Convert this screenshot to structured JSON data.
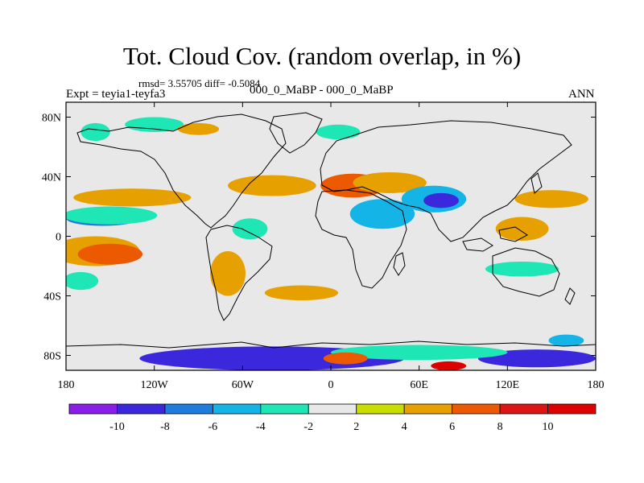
{
  "title": "Tot. Cloud Cov. (random overlap, in %)",
  "stats": "rmsd= 3.55705 diff= -0.5084",
  "left_label": "Expt = teyia1-teyfa3",
  "center_label": "000_0_MaBP - 000_0_MaBP",
  "right_label": "ANN",
  "chart_data": {
    "type": "heatmap",
    "x_ticks": [
      "180",
      "120W",
      "60W",
      "0",
      "60E",
      "120E",
      "180"
    ],
    "y_ticks": [
      "80N",
      "40N",
      "0",
      "40S",
      "80S"
    ],
    "x_values": [
      -180,
      -120,
      -60,
      0,
      60,
      120,
      180
    ],
    "y_values": [
      80,
      40,
      0,
      -40,
      -80
    ],
    "xlim": [
      -180,
      180
    ],
    "ylim": [
      -90,
      90
    ],
    "colorbar": {
      "labels": [
        "-10",
        "-8",
        "-6",
        "-4",
        "-2",
        "2",
        "4",
        "6",
        "8",
        "10"
      ],
      "levels": [
        -10,
        -8,
        -6,
        -4,
        -2,
        2,
        4,
        6,
        8,
        10
      ],
      "colors": [
        "#8a1ee6",
        "#3c28dc",
        "#1e7ddc",
        "#14b4e6",
        "#1ee6b4",
        "#e8e8e8",
        "#c8dc00",
        "#e6a000",
        "#eb5a00",
        "#dc1414",
        "#dc0000"
      ]
    },
    "regions": [
      {
        "level": 4,
        "lon": -160,
        "lat": -10,
        "rx": 30,
        "ry": 10
      },
      {
        "level": 8,
        "lon": -155,
        "lat": -12,
        "rx": 12,
        "ry": 5
      },
      {
        "level": 6,
        "lon": -150,
        "lat": -12,
        "rx": 22,
        "ry": 7
      },
      {
        "level": -8,
        "lon": -155,
        "lat": 12,
        "rx": 25,
        "ry": 5
      },
      {
        "level": -4,
        "lon": -150,
        "lat": 14,
        "rx": 32,
        "ry": 6
      },
      {
        "level": 4,
        "lon": -135,
        "lat": 26,
        "rx": 40,
        "ry": 6
      },
      {
        "level": 4,
        "lon": -40,
        "lat": 34,
        "rx": 30,
        "ry": 7
      },
      {
        "level": 6,
        "lon": 15,
        "lat": 34,
        "rx": 22,
        "ry": 8
      },
      {
        "level": 4,
        "lon": 40,
        "lat": 36,
        "rx": 25,
        "ry": 7
      },
      {
        "level": -6,
        "lon": 70,
        "lat": 25,
        "rx": 22,
        "ry": 9
      },
      {
        "level": -10,
        "lon": 75,
        "lat": 24,
        "rx": 12,
        "ry": 5
      },
      {
        "level": -6,
        "lon": 35,
        "lat": 15,
        "rx": 22,
        "ry": 10
      },
      {
        "level": -4,
        "lon": -55,
        "lat": 5,
        "rx": 12,
        "ry": 7
      },
      {
        "level": 4,
        "lon": -70,
        "lat": -25,
        "rx": 12,
        "ry": 15
      },
      {
        "level": 4,
        "lon": 130,
        "lat": 5,
        "rx": 18,
        "ry": 8
      },
      {
        "level": 4,
        "lon": 150,
        "lat": 25,
        "rx": 25,
        "ry": 6
      },
      {
        "level": -4,
        "lon": 5,
        "lat": 70,
        "rx": 15,
        "ry": 5
      },
      {
        "level": -4,
        "lon": -160,
        "lat": 70,
        "rx": 10,
        "ry": 6
      },
      {
        "level": -4,
        "lon": -120,
        "lat": 75,
        "rx": 20,
        "ry": 5
      },
      {
        "level": 4,
        "lon": -90,
        "lat": 72,
        "rx": 14,
        "ry": 4
      },
      {
        "level": -4,
        "lon": 130,
        "lat": -22,
        "rx": 25,
        "ry": 5
      },
      {
        "level": -4,
        "lon": -170,
        "lat": -30,
        "rx": 12,
        "ry": 6
      },
      {
        "level": 4,
        "lon": -20,
        "lat": -38,
        "rx": 25,
        "ry": 5
      },
      {
        "level": -10,
        "lon": -40,
        "lat": -82,
        "rx": 90,
        "ry": 8
      },
      {
        "level": -10,
        "lon": 140,
        "lat": -82,
        "rx": 40,
        "ry": 6
      },
      {
        "level": -4,
        "lon": 60,
        "lat": -78,
        "rx": 60,
        "ry": 5
      },
      {
        "level": 6,
        "lon": 10,
        "lat": -82,
        "rx": 15,
        "ry": 4
      },
      {
        "level": 10,
        "lon": 80,
        "lat": -87,
        "rx": 12,
        "ry": 3
      },
      {
        "level": -6,
        "lon": 160,
        "lat": -70,
        "rx": 12,
        "ry": 4
      }
    ]
  }
}
